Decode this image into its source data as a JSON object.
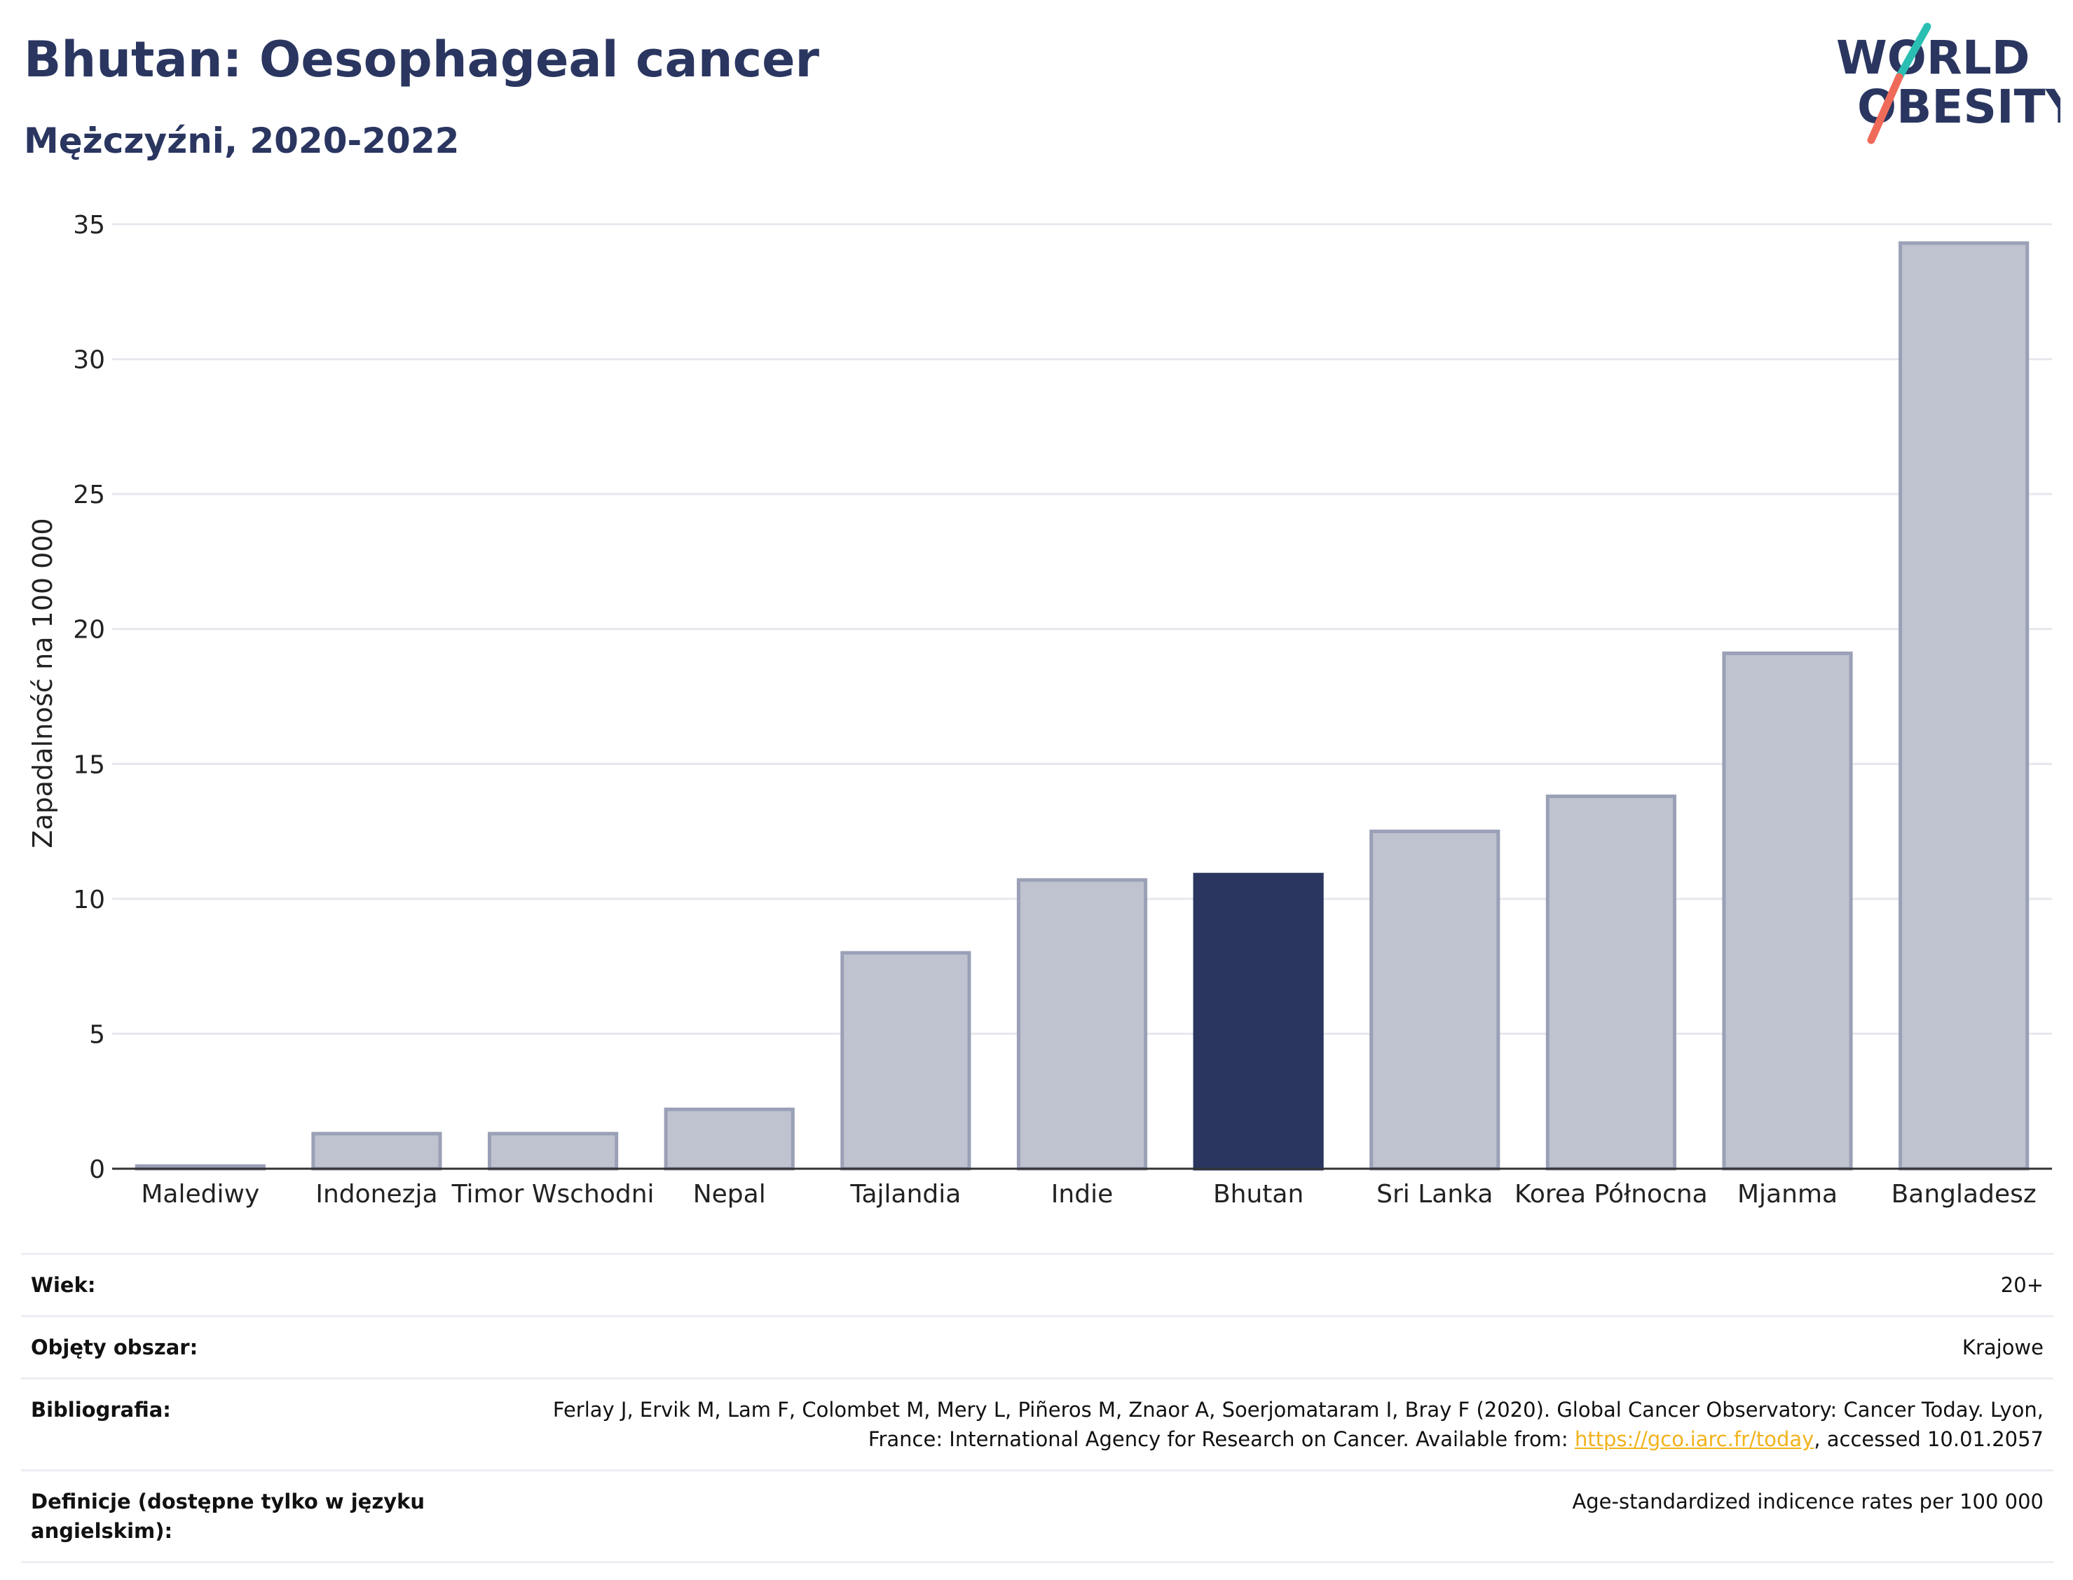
{
  "title": "Bhutan: Oesophageal cancer",
  "subtitle": "Mężczyźni, 2020-2022",
  "logo": {
    "line1": "WORLD",
    "line2": "OBESITY",
    "accent_teal": "#2bbfb3",
    "accent_coral": "#f06a5a"
  },
  "colors": {
    "highlight": "#2a3660",
    "bar": "#bfc3d0",
    "bar_stroke": "#9aa0b6",
    "grid": "#e6e8ee",
    "axis": "#333333"
  },
  "chart_data": {
    "type": "bar",
    "categories": [
      "Malediwy",
      "Indonezja",
      "Timor Wschodni",
      "Nepal",
      "Tajlandia",
      "Indie",
      "Bhutan",
      "Sri Lanka",
      "Korea Północna",
      "Mjanma",
      "Bangladesz"
    ],
    "values": [
      0.1,
      1.3,
      1.3,
      2.2,
      8.0,
      10.7,
      10.9,
      12.5,
      13.8,
      19.1,
      34.3
    ],
    "highlight": "Bhutan",
    "ylabel": "Zapadalność na 100 000",
    "xlabel": "",
    "ylim": [
      0,
      35
    ],
    "yticks": [
      0,
      5,
      10,
      15,
      20,
      25,
      30,
      35
    ],
    "grid": true
  },
  "info": [
    {
      "label": "Wiek:",
      "value": "20+"
    },
    {
      "label": "Objęty obszar:",
      "value": "Krajowe"
    },
    {
      "label": "Bibliografia:",
      "value_pre": "Ferlay J, Ervik M, Lam F, Colombet M, Mery L, Piñeros M, Znaor A, Soerjomataram I, Bray F (2020). Global Cancer Observatory: Cancer Today. Lyon, France: International Agency for Research on Cancer. Available from: ",
      "link": "https://gco.iarc.fr/today",
      "value_post": ", accessed 10.01.2057"
    },
    {
      "label": "Definicje (dostępne tylko w języku angielskim):",
      "value": "Age-standardized indicence rates per 100 000"
    }
  ]
}
